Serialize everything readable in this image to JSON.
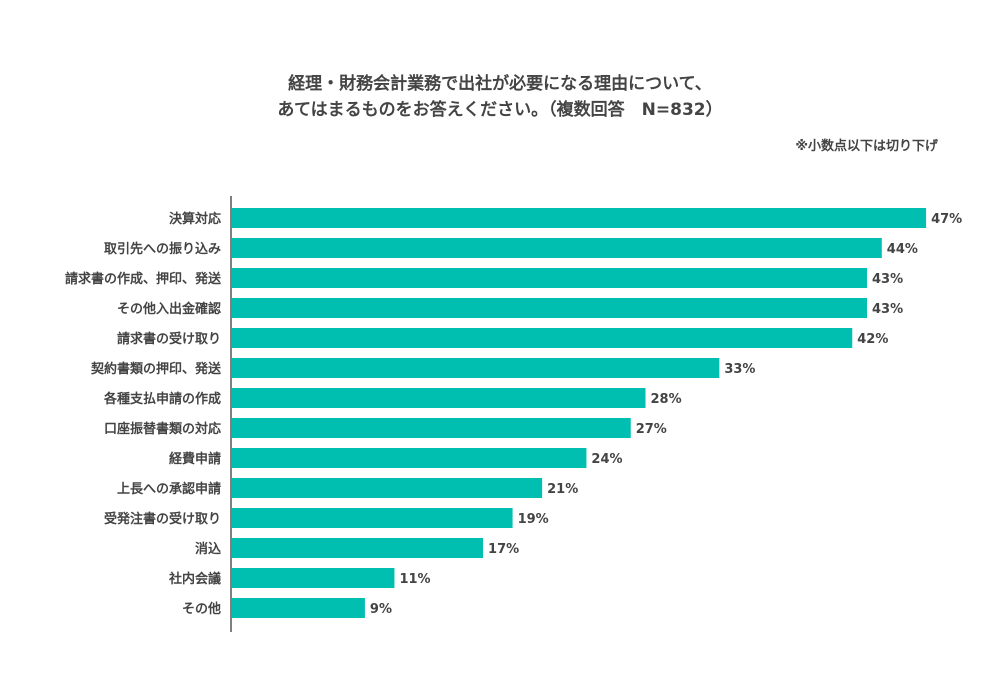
{
  "chart_data": {
    "type": "bar",
    "orientation": "horizontal",
    "title_line1": "経理・財務会計業務で出社が必要になる理由について、",
    "title_line2": "あてはまるものをお答えください。（複数回答　N=832）",
    "note": "※小数点以下は切り下げ",
    "categories": [
      "決算対応",
      "取引先への振り込み",
      "請求書の作成、押印、発送",
      "その他入出金確認",
      "請求書の受け取り",
      "契約書類の押印、発送",
      "各種支払申請の作成",
      "口座振替書類の対応",
      "経費申請",
      "上長への承認申請",
      "受発注書の受け取り",
      "消込",
      "社内会議",
      "その他"
    ],
    "values": [
      47,
      44,
      43,
      43,
      42,
      33,
      28,
      27,
      24,
      21,
      19,
      17,
      11,
      9
    ],
    "labels": [
      "47%",
      "44%",
      "43%",
      "43%",
      "42%",
      "33%",
      "28%",
      "27%",
      "24%",
      "21%",
      "19%",
      "17%",
      "11%",
      "9%"
    ],
    "xlim": [
      0,
      47.4
    ],
    "bar_color": "#00bfb0",
    "axis_color": "#555555"
  }
}
